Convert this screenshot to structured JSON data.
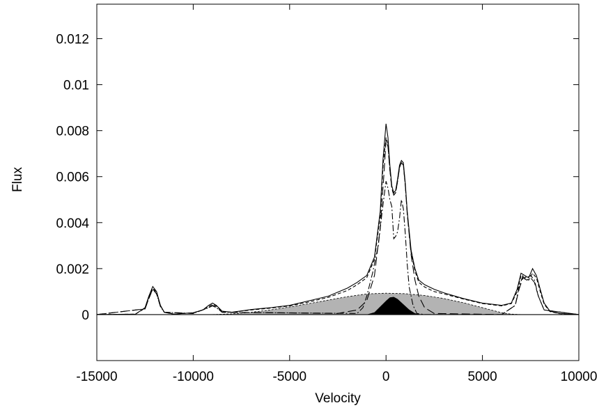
{
  "chart_data": {
    "type": "line",
    "title": "",
    "xlabel": "Velocity",
    "ylabel": "Flux",
    "xlim": [
      -15000,
      10000
    ],
    "ylim": [
      -0.002,
      0.0135
    ],
    "xticks": [
      -15000,
      -10000,
      -5000,
      0,
      5000,
      10000
    ],
    "xtick_labels": [
      "-15000",
      "-10000",
      "-5000",
      "0",
      "5000",
      "10000"
    ],
    "yticks": [
      0,
      0.002,
      0.004,
      0.006,
      0.008,
      0.01,
      0.012
    ],
    "ytick_labels": [
      "0",
      "0.002",
      "0.004",
      "0.006",
      "0.008",
      "0.01",
      "0.012"
    ],
    "grid": false,
    "legend": "none",
    "colors": {
      "line": "#000000",
      "broad_fill": "#b3b3b3",
      "narrow_fill": "#000000"
    },
    "series": [
      {
        "style": "solid",
        "x": [
          -15000,
          -13000,
          -12500,
          -12300,
          -12100,
          -11900,
          -11700,
          -11500,
          -11000,
          -10000,
          -9500,
          -9200,
          -9000,
          -8800,
          -8500,
          -8000,
          -7000,
          -6000,
          -5000,
          -4000,
          -3000,
          -2000,
          -1500,
          -1000,
          -600,
          -300,
          -150,
          0,
          100,
          200,
          300,
          400,
          500,
          600,
          700,
          800,
          900,
          1000,
          1100,
          1300,
          1500,
          1700,
          2000,
          2500,
          3000,
          4000,
          5000,
          6000,
          6500,
          6800,
          7000,
          7200,
          7400,
          7600,
          7800,
          8000,
          8200,
          8500,
          9000,
          10000
        ],
        "y": [
          0,
          2e-05,
          0.0003,
          0.0008,
          0.00122,
          0.001,
          0.0004,
          0.0001,
          2e-05,
          8e-05,
          0.0002,
          0.0004,
          0.0005,
          0.0004,
          0.00015,
          0.0001,
          0.00022,
          0.0003,
          0.0004,
          0.0006,
          0.0008,
          0.00115,
          0.0014,
          0.0017,
          0.0025,
          0.0045,
          0.0068,
          0.0083,
          0.0077,
          0.0065,
          0.0056,
          0.0053,
          0.0054,
          0.0059,
          0.0065,
          0.0067,
          0.0066,
          0.0057,
          0.0045,
          0.0028,
          0.002,
          0.0015,
          0.0013,
          0.0011,
          0.00095,
          0.0007,
          0.0005,
          0.0004,
          0.0005,
          0.0011,
          0.0018,
          0.0017,
          0.0016,
          0.002,
          0.0017,
          0.0011,
          0.0005,
          0.00015,
          5e-05,
          0
        ]
      },
      {
        "style": "dashed",
        "x": [
          -15000,
          -13000,
          -12500,
          -12300,
          -12100,
          -11900,
          -11700,
          -11500,
          -11000,
          -10000,
          -9500,
          -9200,
          -9000,
          -8800,
          -8500,
          -8000,
          -7000,
          -6000,
          -5000,
          -4000,
          -3000,
          -2000,
          -1500,
          -1000,
          -600,
          -300,
          -150,
          0,
          100,
          200,
          300,
          400,
          500,
          600,
          700,
          800,
          900,
          1000,
          1100,
          1300,
          1500,
          1700,
          2000,
          2500,
          3000,
          4000,
          5000,
          6000,
          6500,
          6800,
          7000,
          7200,
          7400,
          7600,
          7800,
          8000,
          8200,
          8500,
          9000,
          10000
        ],
        "y": [
          0,
          2e-05,
          0.00028,
          0.00075,
          0.00115,
          0.00095,
          0.00038,
          0.0001,
          2e-05,
          8e-05,
          0.0002,
          0.00035,
          0.00045,
          0.00037,
          0.00014,
          0.0001,
          0.0002,
          0.00028,
          0.00038,
          0.00055,
          0.00075,
          0.00105,
          0.0013,
          0.0016,
          0.0024,
          0.0043,
          0.0065,
          0.0077,
          0.0074,
          0.0063,
          0.0055,
          0.0052,
          0.0053,
          0.0058,
          0.0064,
          0.0066,
          0.0065,
          0.0056,
          0.0044,
          0.0027,
          0.0019,
          0.0014,
          0.0012,
          0.001,
          0.0009,
          0.00068,
          0.00048,
          0.00038,
          0.00048,
          0.001,
          0.0017,
          0.0016,
          0.0015,
          0.0018,
          0.0016,
          0.001,
          0.00045,
          0.00013,
          4e-05,
          0
        ]
      },
      {
        "style": "dash-dot",
        "x": [
          -15000,
          -12500,
          -12300,
          -12100,
          -11900,
          -11700,
          -11500,
          -10000,
          -9200,
          -9000,
          -8800,
          -8500,
          -1500,
          -1200,
          -1000,
          -700,
          -400,
          -200,
          0,
          100,
          200,
          300,
          400,
          500,
          600,
          700,
          800,
          900,
          1000,
          1100,
          1200,
          1400,
          1600,
          2000,
          6000,
          6700,
          6900,
          7100,
          7300,
          7500,
          7700,
          7900,
          8200,
          10000
        ],
        "y": [
          0,
          0.00025,
          0.0007,
          0.0011,
          0.0009,
          0.00035,
          0.0001,
          5e-05,
          0.0003,
          0.00038,
          0.0003,
          0.0001,
          5e-05,
          0.0003,
          0.0008,
          0.0018,
          0.003,
          0.0045,
          0.0058,
          0.0055,
          0.005,
          0.0047,
          0.0033,
          0.0034,
          0.0036,
          0.0042,
          0.005,
          0.0046,
          0.0035,
          0.0022,
          0.0012,
          0.0004,
          5e-05,
          0,
          0,
          0.0004,
          0.0012,
          0.0017,
          0.0016,
          0.0017,
          0.0015,
          0.0008,
          0.0002,
          0
        ]
      },
      {
        "style": "long-dash",
        "x": [
          -15000,
          -12500,
          -12300,
          -12100,
          -11900,
          -11700,
          -11500,
          -10000,
          -9200,
          -9000,
          -8800,
          -8500,
          -2500,
          -1500,
          -1000,
          -600,
          -300,
          -100,
          0,
          100,
          200,
          300,
          400,
          500,
          600,
          700,
          800,
          900,
          1000,
          1100,
          1300,
          1500,
          1700,
          2000,
          2500,
          6000,
          6700,
          6900,
          7100,
          7300,
          7500,
          7700,
          7900,
          8200,
          10000
        ],
        "y": [
          0,
          0.00025,
          0.0007,
          0.00112,
          0.0009,
          0.00036,
          0.0001,
          5e-05,
          0.0003,
          0.0004,
          0.00032,
          0.0001,
          5e-05,
          0.0002,
          0.0006,
          0.0017,
          0.0038,
          0.0062,
          0.0076,
          0.0073,
          0.0063,
          0.0055,
          0.0052,
          0.0053,
          0.0058,
          0.0064,
          0.0066,
          0.0065,
          0.0056,
          0.0044,
          0.0026,
          0.0015,
          0.0008,
          0.0003,
          5e-05,
          0,
          0.0004,
          0.0011,
          0.0016,
          0.0015,
          0.0016,
          0.0014,
          0.0008,
          0.0002,
          0
        ]
      },
      {
        "style": "fill-gray",
        "x": [
          -9000,
          -8000,
          -7000,
          -6000,
          -5000,
          -4000,
          -3000,
          -2000,
          -1000,
          0,
          1000,
          2000,
          3000,
          4000,
          5000,
          6000,
          6500,
          7000
        ],
        "y": [
          0,
          3e-05,
          0.0001,
          0.0002,
          0.00033,
          0.00048,
          0.00063,
          0.00078,
          0.0009,
          0.00093,
          0.00091,
          0.00083,
          0.0007,
          0.00052,
          0.0003,
          8e-05,
          2e-05,
          0
        ]
      },
      {
        "style": "fill-black",
        "x": [
          -1000,
          -600,
          -300,
          0,
          200,
          400,
          600,
          900,
          1200,
          1500,
          1800
        ],
        "y": [
          0,
          0.0001,
          0.00035,
          0.0006,
          0.00075,
          0.00077,
          0.00068,
          0.00045,
          0.00022,
          6e-05,
          0
        ]
      }
    ]
  }
}
